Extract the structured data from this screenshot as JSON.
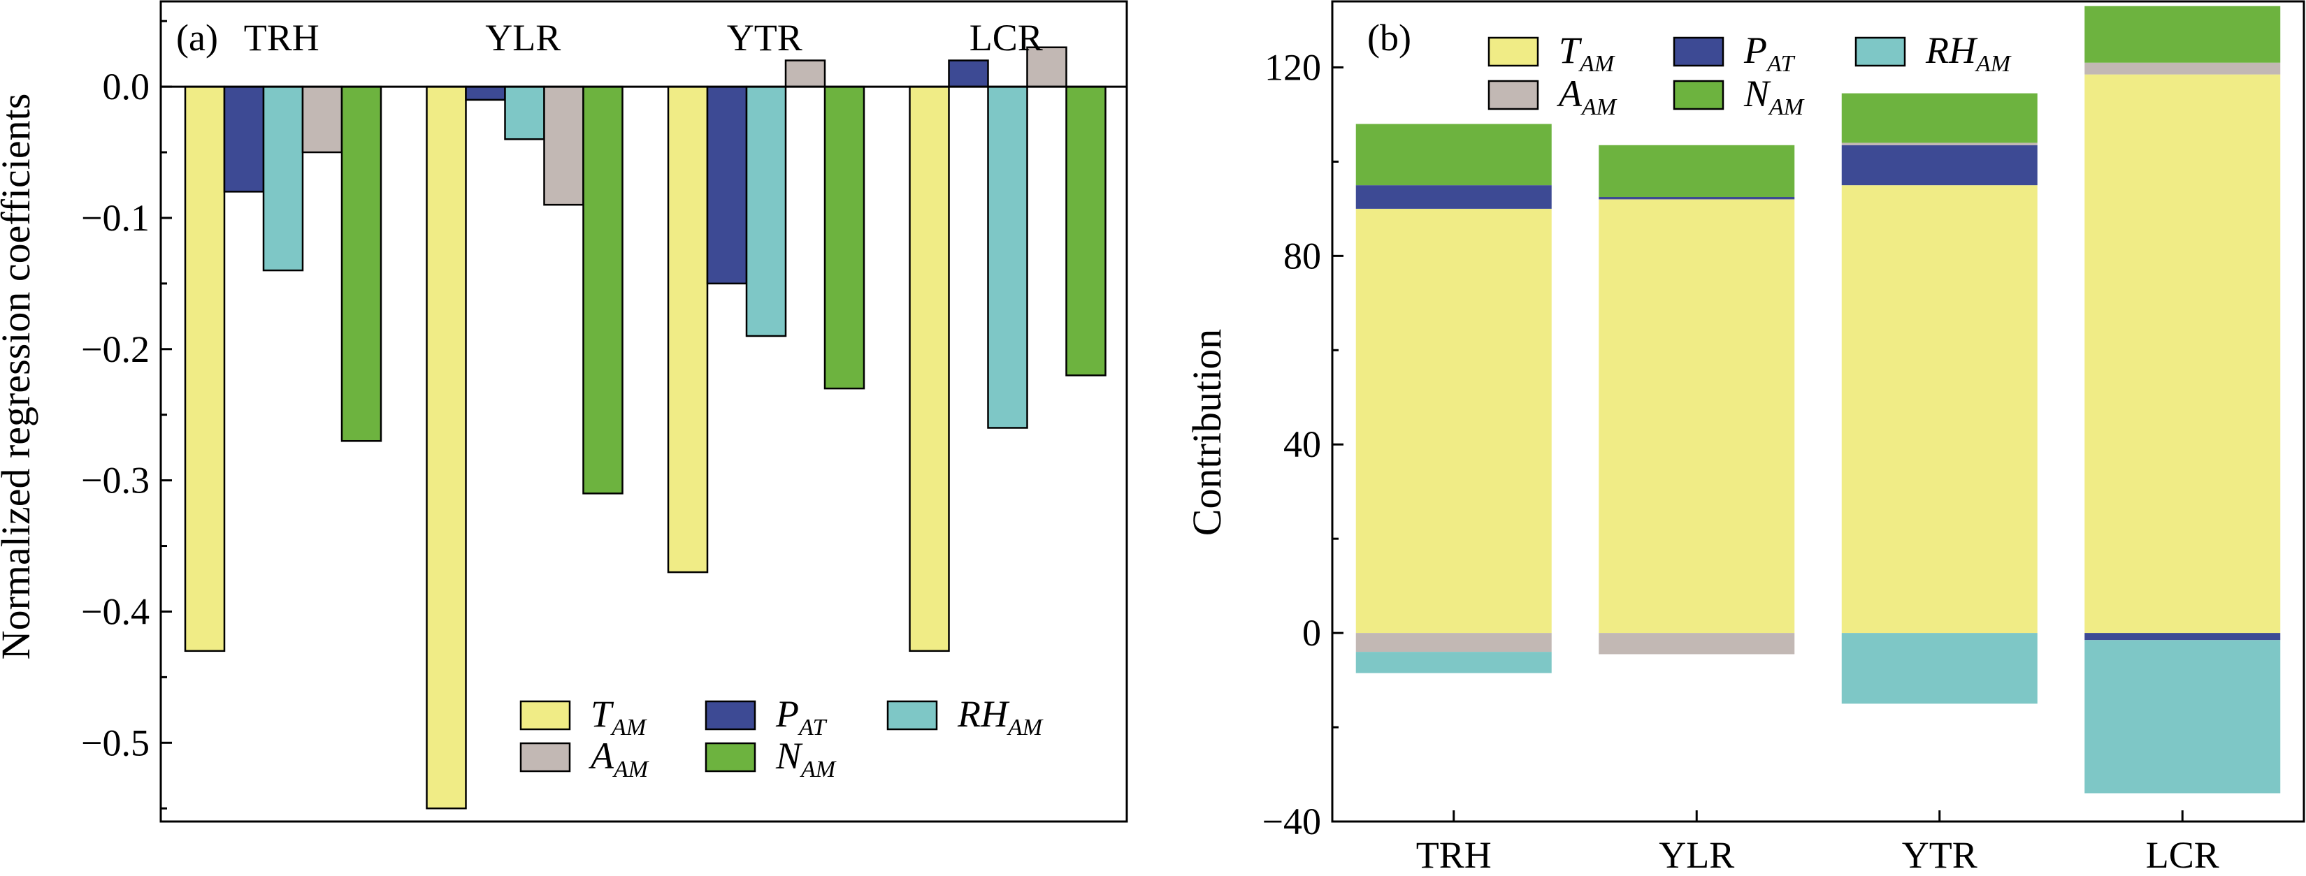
{
  "colors": {
    "T_AM": "#f0ec86",
    "P_AT": "#3d4a94",
    "RH_AM": "#7ec7c6",
    "A_AM": "#c2b8b4",
    "N_AM": "#6db33f"
  },
  "legend": [
    {
      "key": "T_AM",
      "main": "T",
      "sub": "AM"
    },
    {
      "key": "P_AT",
      "main": "P",
      "sub": "AT"
    },
    {
      "key": "RH_AM",
      "main": "RH",
      "sub": "AM"
    },
    {
      "key": "A_AM",
      "main": "A",
      "sub": "AM"
    },
    {
      "key": "N_AM",
      "main": "N",
      "sub": "AM"
    }
  ],
  "chart_data": [
    {
      "panel_label": "(a)",
      "type": "bar",
      "ylabel": "Normalized regression coefficients",
      "xlabel": "",
      "ylim": [
        -0.56,
        0.065
      ],
      "yticks": [
        "0.0",
        "−0.1",
        "−0.2",
        "−0.3",
        "−0.4",
        "−0.5"
      ],
      "ytick_values": [
        0,
        -0.1,
        -0.2,
        -0.3,
        -0.4,
        -0.5
      ],
      "categories": [
        "TRH",
        "YLR",
        "YTR",
        "LCR"
      ],
      "category_position": "top",
      "legend_position": "bottom-right",
      "series": [
        {
          "name": "T_AM",
          "values": [
            -0.43,
            -0.55,
            -0.37,
            -0.43
          ]
        },
        {
          "name": "P_AT",
          "values": [
            -0.08,
            -0.01,
            -0.15,
            0.02
          ]
        },
        {
          "name": "RH_AM",
          "values": [
            -0.14,
            -0.04,
            -0.19,
            -0.26
          ]
        },
        {
          "name": "A_AM",
          "values": [
            -0.05,
            -0.09,
            0.02,
            0.03
          ]
        },
        {
          "name": "N_AM",
          "values": [
            -0.27,
            -0.31,
            -0.23,
            -0.22
          ]
        }
      ]
    },
    {
      "panel_label": "(b)",
      "type": "bar",
      "stacked": true,
      "ylabel": "Contribution",
      "xlabel": "",
      "ylim": [
        -40,
        134
      ],
      "yticks": [
        "120",
        "80",
        "40",
        "0",
        "−40"
      ],
      "ytick_values": [
        120,
        80,
        40,
        0,
        -40
      ],
      "categories": [
        "TRH",
        "YLR",
        "YTR",
        "LCR"
      ],
      "legend_position": "top-left",
      "series": [
        {
          "name": "T_AM",
          "values": [
            90,
            92,
            95,
            118.5
          ]
        },
        {
          "name": "P_AT",
          "values": [
            5,
            0.5,
            8.5,
            -1.5
          ]
        },
        {
          "name": "RH_AM",
          "values": [
            -4.5,
            0,
            -15,
            -32.5
          ]
        },
        {
          "name": "A_AM",
          "values": [
            -4,
            -4.5,
            0.5,
            2.5
          ]
        },
        {
          "name": "N_AM",
          "values": [
            13,
            11,
            10.5,
            12
          ]
        }
      ]
    }
  ]
}
